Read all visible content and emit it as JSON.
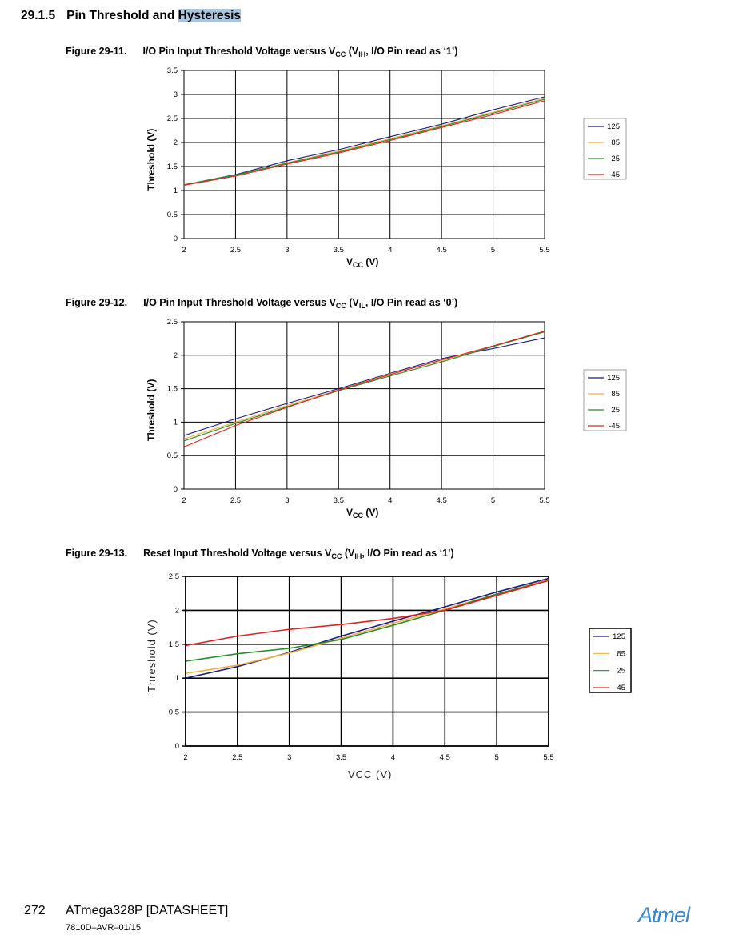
{
  "section": {
    "number": "29.1.5",
    "title_plain": "Pin Threshold and ",
    "title_highlight": "Hysteresis"
  },
  "footer": {
    "page": "272",
    "title": "ATmega328P [DATASHEET]",
    "doc": "7810D–AVR–01/15",
    "logo": "Atmel"
  },
  "colors": {
    "125": "#1a1a80",
    "85": "#f0b040",
    "25": "#2a8a2a",
    "-45": "#e02020",
    "highlight": "#a9c6e0",
    "logo": "#3a86c8"
  },
  "chart_data": [
    {
      "type": "line",
      "label": "Figure 29-11.",
      "title": {
        "a": "I/O Pin Input Threshold Voltage versus V",
        "b": "CC",
        "c": " (V",
        "d": "IH",
        "e": ", I/O Pin read as ‘1’)"
      },
      "xlabel": {
        "a": "V",
        "b": "CC",
        "c": " (V)"
      },
      "ylabel": "Threshold (V)",
      "x": [
        2,
        2.5,
        3,
        3.5,
        4,
        4.5,
        5,
        5.5
      ],
      "xticks": [
        "2",
        "2.5",
        "3",
        "3.5",
        "4",
        "4.5",
        "5",
        "5.5"
      ],
      "xlim": [
        2,
        5.5
      ],
      "yticks": [
        "0",
        "0.5",
        "1",
        "1.5",
        "2",
        "2.5",
        "3",
        "3.5"
      ],
      "ylim": [
        0,
        3.5
      ],
      "grid": true,
      "legend_position": "right",
      "series": [
        {
          "name": "125",
          "values": [
            1.12,
            1.33,
            1.62,
            1.85,
            2.12,
            2.38,
            2.68,
            2.95
          ]
        },
        {
          "name": "85",
          "values": [
            1.12,
            1.32,
            1.58,
            1.82,
            2.08,
            2.35,
            2.63,
            2.92
          ]
        },
        {
          "name": "25",
          "values": [
            1.12,
            1.32,
            1.57,
            1.8,
            2.06,
            2.33,
            2.61,
            2.9
          ]
        },
        {
          "name": "-45",
          "values": [
            1.11,
            1.3,
            1.55,
            1.78,
            2.04,
            2.31,
            2.58,
            2.87
          ]
        }
      ]
    },
    {
      "type": "line",
      "label": "Figure 29-12.",
      "title": {
        "a": "I/O Pin Input Threshold Voltage versus V",
        "b": "CC",
        "c": " (V",
        "d": "IL",
        "e": ", I/O Pin read as ‘0’)"
      },
      "xlabel": {
        "a": "V",
        "b": "CC",
        "c": " (V)"
      },
      "ylabel": "Threshold (V)",
      "x": [
        2,
        2.5,
        3,
        3.5,
        4,
        4.5,
        5,
        5.5
      ],
      "xticks": [
        "2",
        "2.5",
        "3",
        "3.5",
        "4",
        "4.5",
        "5",
        "5.5"
      ],
      "xlim": [
        2,
        5.5
      ],
      "yticks": [
        "0",
        "0.5",
        "1",
        "1.5",
        "2",
        "2.5"
      ],
      "ylim": [
        0,
        2.5
      ],
      "grid": true,
      "legend_position": "right",
      "series": [
        {
          "name": "125",
          "values": [
            0.8,
            1.05,
            1.28,
            1.5,
            1.73,
            1.95,
            2.1,
            2.26
          ]
        },
        {
          "name": "85",
          "values": [
            0.75,
            1.0,
            1.25,
            1.48,
            1.72,
            1.92,
            2.14,
            2.35
          ]
        },
        {
          "name": "25",
          "values": [
            0.72,
            0.98,
            1.23,
            1.47,
            1.69,
            1.9,
            2.13,
            2.35
          ]
        },
        {
          "name": "-45",
          "values": [
            0.63,
            0.95,
            1.22,
            1.48,
            1.71,
            1.93,
            2.14,
            2.36
          ]
        }
      ]
    },
    {
      "type": "line",
      "label": "Figure 29-13.",
      "title": {
        "a": "Reset Input Threshold Voltage versus V",
        "b": "CC",
        "c": " (V",
        "d": "IH",
        "e": ", I/O Pin read as ‘1’)"
      },
      "xlabel": {
        "a": "VCC (V)",
        "b": "",
        "c": ""
      },
      "ylabel": "Threshold (V)",
      "x": [
        2,
        2.5,
        3,
        3.5,
        4,
        4.5,
        5,
        5.5
      ],
      "xticks": [
        "2",
        "2.5",
        "3",
        "3.5",
        "4",
        "4.5",
        "5",
        "5.5"
      ],
      "xlim": [
        2,
        5.5
      ],
      "yticks": [
        "0",
        "0.5",
        "1",
        "1.5",
        "2",
        "2.5"
      ],
      "ylim": [
        0,
        2.5
      ],
      "grid": true,
      "legend_position": "right",
      "series": [
        {
          "name": "125",
          "values": [
            1.0,
            1.17,
            1.38,
            1.62,
            1.84,
            2.05,
            2.27,
            2.47
          ]
        },
        {
          "name": "85",
          "values": [
            1.07,
            1.19,
            1.37,
            1.59,
            1.81,
            2.02,
            2.24,
            2.45
          ]
        },
        {
          "name": "25",
          "values": [
            1.25,
            1.36,
            1.44,
            1.57,
            1.78,
            2.0,
            2.24,
            2.44
          ]
        },
        {
          "name": "-45",
          "values": [
            1.48,
            1.62,
            1.72,
            1.79,
            1.88,
            2.0,
            2.22,
            2.44
          ]
        }
      ]
    }
  ]
}
